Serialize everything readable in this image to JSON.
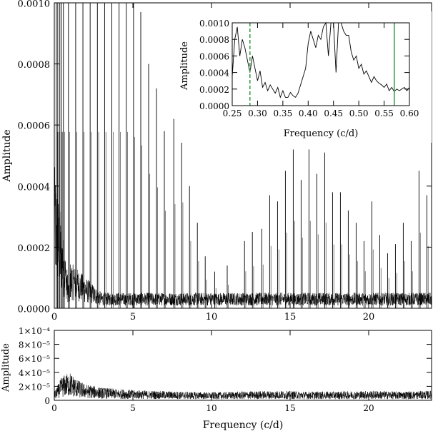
{
  "chart_data": [
    {
      "id": "main",
      "type": "line",
      "title": "",
      "xlabel": "",
      "ylabel": "Amplitude",
      "xlim": [
        0,
        24
      ],
      "ylim": [
        0,
        0.001
      ],
      "x_ticks": [
        0,
        5,
        10,
        15,
        20
      ],
      "x_tick_labels": [
        "0",
        "5",
        "10",
        "15",
        "20"
      ],
      "y_ticks": [
        0,
        0.0002,
        0.0004,
        0.0006,
        0.0008,
        0.001
      ],
      "y_tick_labels": [
        "0.0000",
        "0.0002",
        "0.0004",
        "0.0006",
        "0.0008",
        "0.0010"
      ],
      "noise_floor": 3e-05,
      "series": [
        {
          "peaks": [
            [
              0.12,
              0.00105
            ],
            [
              0.22,
              0.00105
            ],
            [
              0.35,
              0.00105
            ],
            [
              0.45,
              0.00105
            ],
            [
              0.58,
              0.00105
            ],
            [
              0.9,
              0.00105
            ],
            [
              1.36,
              0.00105
            ],
            [
              1.82,
              0.00105
            ],
            [
              2.28,
              0.00105
            ],
            [
              2.74,
              0.00105
            ],
            [
              3.2,
              0.00105
            ],
            [
              3.66,
              0.00105
            ],
            [
              4.12,
              0.00105
            ],
            [
              4.58,
              0.00105
            ],
            [
              5.04,
              0.00102
            ],
            [
              5.5,
              0.00097
            ],
            [
              6.0,
              0.0008
            ],
            [
              6.5,
              0.00072
            ],
            [
              7.0,
              0.00058
            ],
            [
              7.6,
              0.00062
            ],
            [
              8.1,
              0.00063
            ],
            [
              8.6,
              0.0004
            ],
            [
              9.1,
              0.00028
            ],
            [
              9.6,
              0.00017
            ],
            [
              10.2,
              0.00012
            ],
            [
              11.0,
              0.00014
            ],
            [
              12.1,
              0.00022
            ],
            [
              12.6,
              0.00025
            ],
            [
              13.2,
              0.00026
            ],
            [
              13.7,
              0.00037
            ],
            [
              14.2,
              0.00035
            ],
            [
              14.7,
              0.00045
            ],
            [
              15.2,
              0.00052
            ],
            [
              15.7,
              0.00042
            ],
            [
              16.2,
              0.00052
            ],
            [
              16.7,
              0.00044
            ],
            [
              17.2,
              0.00051
            ],
            [
              17.7,
              0.00038
            ],
            [
              18.2,
              0.00038
            ],
            [
              18.7,
              0.00032
            ],
            [
              19.2,
              0.00028
            ],
            [
              19.7,
              0.00022
            ],
            [
              20.2,
              0.00035
            ],
            [
              20.7,
              0.00024
            ],
            [
              21.2,
              0.00018
            ],
            [
              21.7,
              0.00021
            ],
            [
              22.2,
              0.00028
            ],
            [
              22.7,
              0.00022
            ],
            [
              23.2,
              0.00045
            ],
            [
              23.7,
              0.00037
            ]
          ]
        }
      ]
    },
    {
      "id": "inset",
      "type": "line",
      "title": "",
      "xlabel": "Frequency (c/d)",
      "ylabel": "Amplitude",
      "xlim": [
        0.25,
        0.6
      ],
      "ylim": [
        0,
        0.001
      ],
      "x_ticks": [
        0.25,
        0.3,
        0.35,
        0.4,
        0.45,
        0.5,
        0.55,
        0.6
      ],
      "x_tick_labels": [
        "0.25",
        "0.30",
        "0.35",
        "0.40",
        "0.45",
        "0.50",
        "0.55",
        "0.60"
      ],
      "y_ticks": [
        0,
        0.0002,
        0.0004,
        0.0006,
        0.0008,
        0.001
      ],
      "y_tick_labels": [
        "0.0000",
        "0.0002",
        "0.0004",
        "0.0006",
        "0.0008",
        "0.0010"
      ],
      "vlines": [
        {
          "x": 0.285,
          "style": "dashed",
          "color": "#2e9a3e"
        },
        {
          "x": 0.57,
          "style": "solid",
          "color": "#2e9a3e"
        }
      ],
      "series": [
        {
          "x": [
            0.25,
            0.255,
            0.26,
            0.265,
            0.27,
            0.275,
            0.28,
            0.285,
            0.29,
            0.295,
            0.3,
            0.305,
            0.31,
            0.315,
            0.32,
            0.325,
            0.33,
            0.335,
            0.34,
            0.345,
            0.35,
            0.355,
            0.36,
            0.365,
            0.37,
            0.375,
            0.38,
            0.385,
            0.39,
            0.395,
            0.4,
            0.405,
            0.41,
            0.415,
            0.42,
            0.425,
            0.43,
            0.435,
            0.44,
            0.445,
            0.45,
            0.455,
            0.46,
            0.465,
            0.47,
            0.475,
            0.48,
            0.485,
            0.49,
            0.495,
            0.5,
            0.505,
            0.51,
            0.515,
            0.52,
            0.525,
            0.53,
            0.535,
            0.54,
            0.545,
            0.55,
            0.555,
            0.56,
            0.565,
            0.57,
            0.575,
            0.58,
            0.585,
            0.59,
            0.595,
            0.6
          ],
          "y": [
            0.00035,
            0.0008,
            0.00095,
            0.0006,
            0.0008,
            0.0007,
            0.00055,
            0.0004,
            0.0006,
            0.00045,
            0.0003,
            0.00042,
            0.00022,
            0.00028,
            0.00018,
            0.00025,
            0.0002,
            0.00015,
            0.00022,
            0.0001,
            0.00018,
            0.0001,
            0.0001,
            0.00016,
            0.00012,
            0.0001,
            0.00015,
            0.00025,
            0.00035,
            0.00045,
            0.00075,
            0.0009,
            0.0008,
            0.0007,
            0.00085,
            0.0008,
            0.00095,
            0.0012,
            0.0006,
            0.0012,
            0.0012,
            0.0004,
            0.0012,
            0.0011,
            0.0009,
            0.00085,
            0.00085,
            0.00065,
            0.00055,
            0.0006,
            0.00045,
            0.0005,
            0.00038,
            0.00042,
            0.00035,
            0.00028,
            0.00035,
            0.0003,
            0.00027,
            0.00025,
            0.00022,
            0.00026,
            0.00018,
            0.00022,
            0.00017,
            0.0002,
            0.00018,
            0.0002,
            0.00022,
            0.00018,
            0.00022
          ]
        }
      ]
    },
    {
      "id": "window",
      "type": "line",
      "title": "",
      "xlabel": "Frequency (c/d)",
      "ylabel": "Amplitude",
      "xlim": [
        0,
        24
      ],
      "ylim": [
        0,
        0.0001
      ],
      "x_ticks": [
        0,
        5,
        10,
        15,
        20
      ],
      "x_tick_labels": [
        "0",
        "5",
        "10",
        "15",
        "20"
      ],
      "y_ticks": [
        0,
        2e-05,
        4e-05,
        6e-05,
        8e-05,
        0.0001
      ],
      "y_tick_labels": [
        "0",
        "2×10⁻⁵",
        "4×10⁻⁵",
        "6×10⁻⁵",
        "8×10⁻⁵",
        "1×10⁻⁴"
      ],
      "series": [
        {
          "x": [
            0,
            0.5,
            1,
            1.5,
            2,
            3,
            4,
            5,
            6,
            8,
            10,
            12,
            14,
            16,
            18,
            20,
            22,
            24
          ],
          "y": [
            1e-05,
            3e-05,
            3.5e-05,
            2.5e-05,
            2e-05,
            1.6e-05,
            1.4e-05,
            1.3e-05,
            1.2e-05,
            1.1e-05,
            1e-05,
            1.1e-05,
            1.2e-05,
            1.1e-05,
            1.1e-05,
            1.2e-05,
            1.1e-05,
            1.2e-05
          ]
        }
      ]
    }
  ]
}
